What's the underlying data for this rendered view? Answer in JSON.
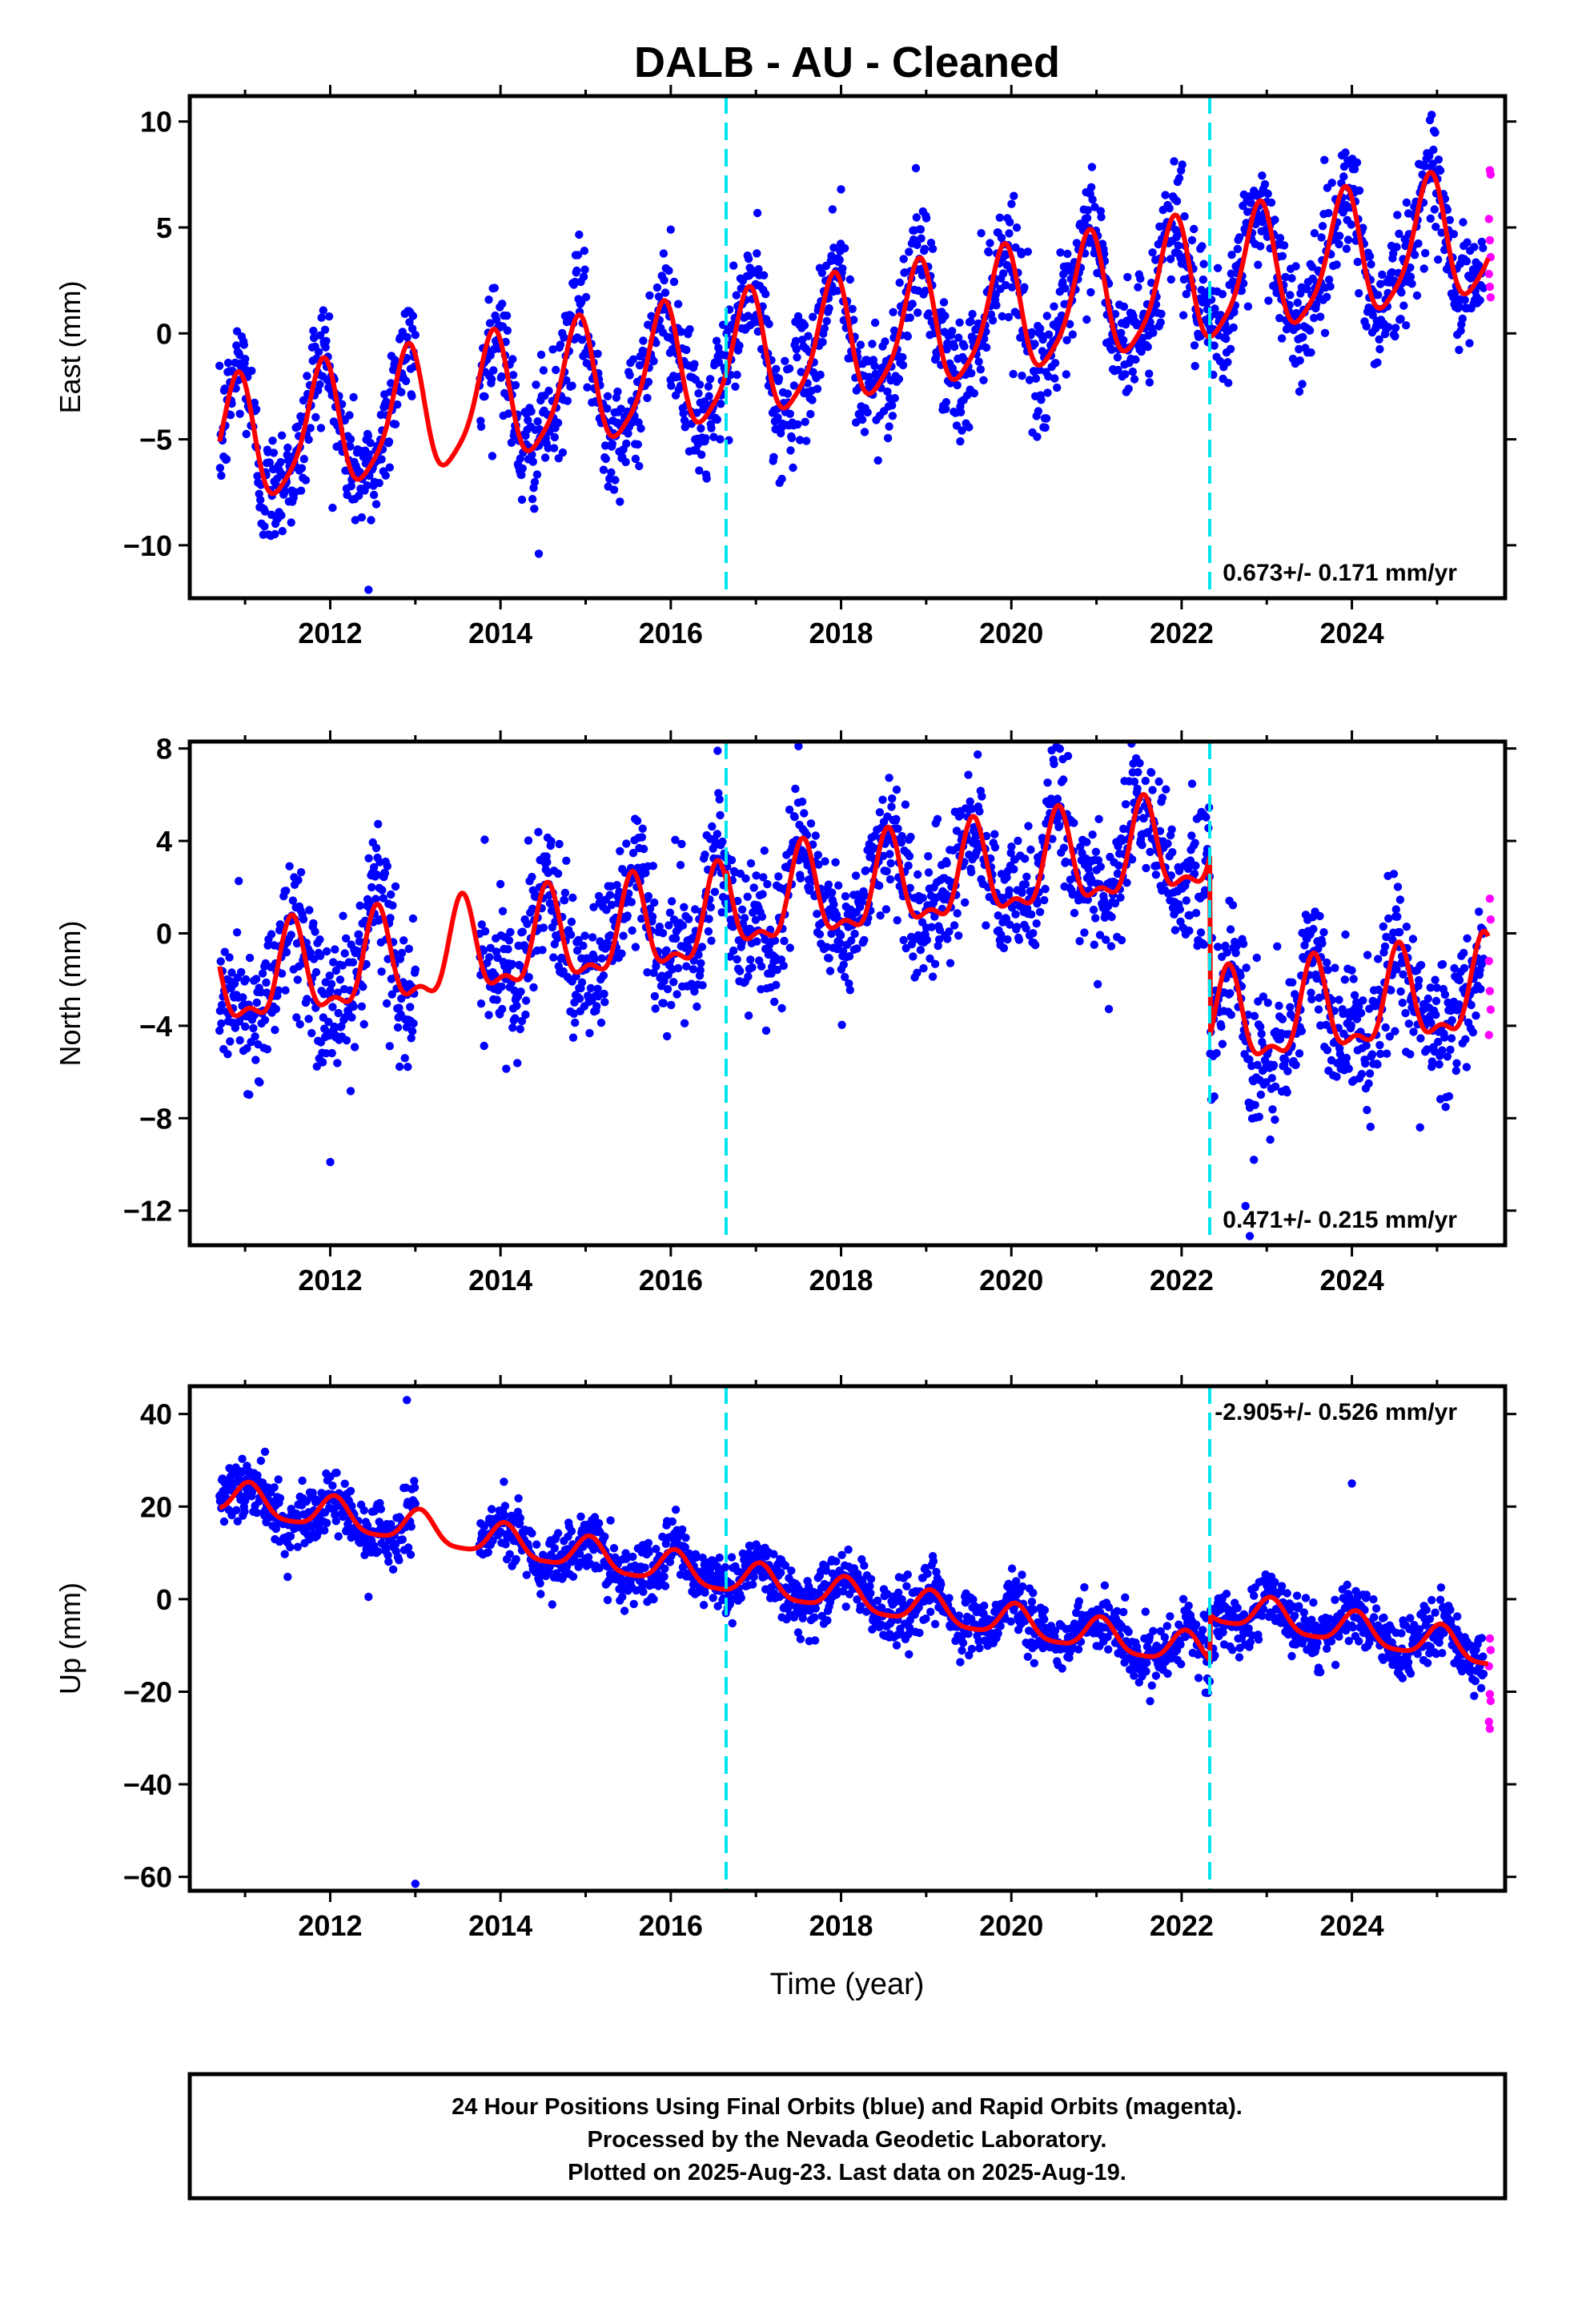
{
  "page_title": "DALB  - AU - Cleaned",
  "xlabel": "Time (year)",
  "footer": {
    "lines": [
      "24 Hour Positions Using Final Orbits (blue) and Rapid Orbits (magenta).",
      "Processed by the Nevada Geodetic Laboratory.",
      "Plotted on 2025-Aug-23. Last data on 2025-Aug-19."
    ]
  },
  "colors": {
    "final_orbits": "#0000ff",
    "rapid_orbits": "#ff00ff",
    "model": "#ff0000",
    "event_lines": "#00e5ee"
  },
  "chart_data": [
    {
      "type": "scatter",
      "component": "east",
      "ylabel": "East (mm)",
      "rate_label": "0.673+/- 0.171 mm/yr",
      "rate_position": "bottom-right",
      "xlim": [
        2010.35,
        2025.8
      ],
      "ylim": [
        -12.5,
        11.2
      ],
      "xticks": [
        2012,
        2014,
        2016,
        2018,
        2020,
        2022,
        2024
      ],
      "yticks": [
        -10,
        -5,
        0,
        5,
        10
      ],
      "event_lines_x": [
        2016.65,
        2022.33
      ],
      "grid": false,
      "data_start": 2010.7,
      "data_end": 2025.55,
      "data_gap": [
        2013.0,
        2013.75
      ],
      "model": {
        "offset_at_start": -5.4,
        "rate": 0.673,
        "annual_amplitude": 2.9,
        "annual_peak": 0.9,
        "semiannual_amplitude": 0.6,
        "semiannual_peak": 0.95,
        "steps": []
      },
      "scatter_sd": 1.4,
      "outliers": [
        [
          2012.45,
          -12.1
        ],
        [
          2014.45,
          -10.4
        ],
        [
          2016.0,
          4.9
        ],
        [
          2018.0,
          6.8
        ],
        [
          2019.4,
          -5.1
        ]
      ],
      "rapid_points": [
        [
          2025.62,
          7.7
        ],
        [
          2025.63,
          7.5
        ],
        [
          2025.61,
          5.4
        ],
        [
          2025.62,
          4.4
        ],
        [
          2025.63,
          3.6
        ],
        [
          2025.61,
          2.8
        ],
        [
          2025.62,
          2.2
        ],
        [
          2025.63,
          1.7
        ]
      ]
    },
    {
      "type": "scatter",
      "component": "north",
      "ylabel": "North (mm)",
      "rate_label": "0.471+/- 0.215 mm/yr",
      "rate_position": "bottom-right",
      "xlim": [
        2010.35,
        2025.8
      ],
      "ylim": [
        -13.5,
        8.3
      ],
      "xticks": [
        2012,
        2014,
        2016,
        2018,
        2020,
        2022,
        2024
      ],
      "yticks": [
        -12,
        -8,
        -4,
        0,
        4,
        8
      ],
      "event_lines_x": [
        2016.65,
        2022.33
      ],
      "grid": false,
      "data_start": 2010.7,
      "data_end": 2025.55,
      "data_gap": [
        2013.0,
        2013.75
      ],
      "model": {
        "offset_at_start": -2.3,
        "rate": 0.471,
        "annual_amplitude": 1.9,
        "annual_peak": 0.55,
        "semiannual_amplitude": 0.8,
        "semiannual_peak": 0.55,
        "steps": [
          [
            2016.65,
            0.5
          ],
          [
            2022.33,
            -7.8
          ]
        ]
      },
      "scatter_sd": 1.5,
      "outliers": [
        [
          2012.0,
          -9.9
        ],
        [
          2016.55,
          7.9
        ],
        [
          2017.5,
          8.1
        ],
        [
          2022.8,
          -13.1
        ],
        [
          2022.75,
          -11.8
        ],
        [
          2024.8,
          -8.4
        ]
      ],
      "rapid_points": [
        [
          2025.62,
          1.5
        ],
        [
          2025.63,
          0.6
        ],
        [
          2025.61,
          -1.2
        ],
        [
          2025.62,
          -2.5
        ],
        [
          2025.63,
          -3.3
        ],
        [
          2025.61,
          -4.4
        ]
      ]
    },
    {
      "type": "scatter",
      "component": "up",
      "ylabel": "Up (mm)",
      "rate_label": "-2.905+/- 0.526 mm/yr",
      "rate_position": "top-right",
      "xlim": [
        2010.35,
        2025.8
      ],
      "ylim": [
        -63,
        46
      ],
      "xticks": [
        2012,
        2014,
        2016,
        2018,
        2020,
        2022,
        2024
      ],
      "yticks": [
        -60,
        -40,
        -20,
        0,
        20,
        40
      ],
      "event_lines_x": [
        2016.65,
        2022.33
      ],
      "grid": false,
      "data_start": 2010.7,
      "data_end": 2025.55,
      "data_gap": [
        2013.0,
        2013.75
      ],
      "model": {
        "offset_at_start": 22.0,
        "rate": -2.905,
        "annual_amplitude": 3.5,
        "annual_peak": 0.05,
        "semiannual_amplitude": 0.8,
        "semiannual_peak": 0.05,
        "steps": [
          [
            2022.33,
            10.0
          ]
        ]
      },
      "scatter_sd": 3.2,
      "outliers": [
        [
          2012.9,
          43.0
        ],
        [
          2013.0,
          -61.5
        ],
        [
          2024.0,
          25.0
        ],
        [
          2012.45,
          0.5
        ],
        [
          2011.5,
          4.8
        ]
      ],
      "rapid_points": [
        [
          2025.62,
          -8.5
        ],
        [
          2025.63,
          -11.0
        ],
        [
          2025.61,
          -14.5
        ],
        [
          2025.62,
          -20.5
        ],
        [
          2025.63,
          -22.0
        ],
        [
          2025.61,
          -26.5
        ],
        [
          2025.62,
          -28.0
        ]
      ]
    }
  ]
}
